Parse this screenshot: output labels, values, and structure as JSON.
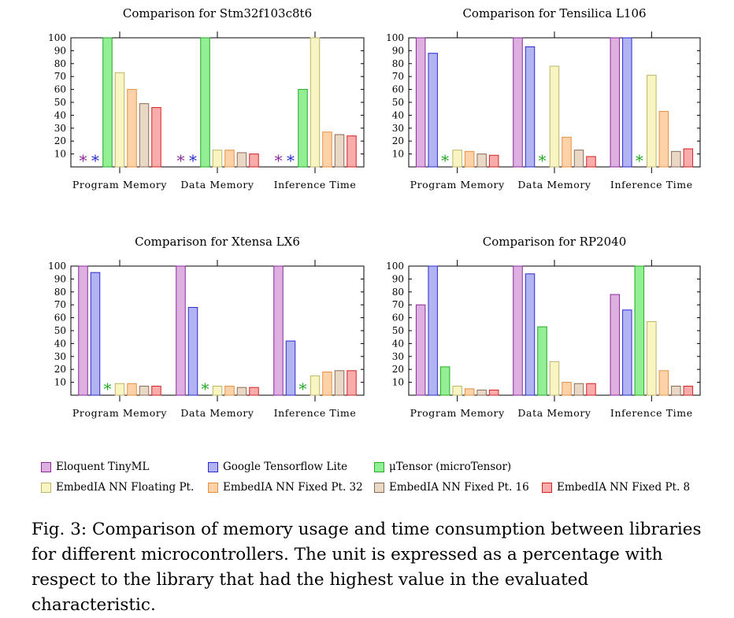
{
  "colors": {
    "Eloquent TinyML": {
      "fill": "#deb0e0",
      "stroke": "#8a2a9a"
    },
    "Google Tensorflow Lite": {
      "fill": "#b2b4f2",
      "stroke": "#2a2ad2"
    },
    "μTensor (microTensor)": {
      "fill": "#93ef93",
      "stroke": "#23a923"
    },
    "EmbedIA NN Floating Pt.": {
      "fill": "#f9f5c2",
      "stroke": "#bdb66a"
    },
    "EmbedIA NN Fixed Pt. 32": {
      "fill": "#fdd2a8",
      "stroke": "#e69040"
    },
    "EmbedIA NN Fixed Pt. 16": {
      "fill": "#ead8c7",
      "stroke": "#8d6a55"
    },
    "EmbedIA NN Fixed Pt. 8": {
      "fill": "#f8acab",
      "stroke": "#d62222"
    }
  },
  "legend": {
    "items": [
      "Eloquent TinyML",
      "Google Tensorflow Lite",
      "μTensor (microTensor)",
      "EmbedIA NN Floating Pt.",
      "EmbedIA NN Fixed Pt. 32",
      "EmbedIA NN Fixed Pt. 16",
      "EmbedIA NN Fixed Pt. 8"
    ]
  },
  "caption": {
    "prefix": "Fig. 3:",
    "text": "Comparison of memory usage and time consumption between libraries for different microcontrollers. The unit is expressed as a percentage with respect to the library that had the highest value in the evaluated characteristic."
  },
  "missing_marker": "*",
  "chart_data": [
    {
      "type": "bar",
      "title": "Comparison for Stm32f103c8t6",
      "categories": [
        "Program Memory",
        "Data Memory",
        "Inference Time"
      ],
      "ylim": [
        0,
        100
      ],
      "yticks": [
        10,
        20,
        30,
        40,
        50,
        60,
        70,
        80,
        90,
        100
      ],
      "series": [
        {
          "name": "Eloquent TinyML",
          "values": [
            null,
            null,
            null
          ]
        },
        {
          "name": "Google Tensorflow Lite",
          "values": [
            null,
            null,
            null
          ]
        },
        {
          "name": "μTensor (microTensor)",
          "values": [
            100,
            100,
            60
          ]
        },
        {
          "name": "EmbedIA NN Floating Pt.",
          "values": [
            73,
            13,
            100
          ]
        },
        {
          "name": "EmbedIA NN Fixed Pt. 32",
          "values": [
            60,
            13,
            27
          ]
        },
        {
          "name": "EmbedIA NN Fixed Pt. 16",
          "values": [
            49,
            11,
            25
          ]
        },
        {
          "name": "EmbedIA NN Fixed Pt. 8",
          "values": [
            46,
            10,
            24
          ]
        }
      ]
    },
    {
      "type": "bar",
      "title": "Comparison for Tensilica L106",
      "categories": [
        "Program Memory",
        "Data Memory",
        "Inference Time"
      ],
      "ylim": [
        0,
        100
      ],
      "yticks": [
        10,
        20,
        30,
        40,
        50,
        60,
        70,
        80,
        90,
        100
      ],
      "series": [
        {
          "name": "Eloquent TinyML",
          "values": [
            100,
            100,
            100
          ]
        },
        {
          "name": "Google Tensorflow Lite",
          "values": [
            88,
            93,
            100
          ]
        },
        {
          "name": "μTensor (microTensor)",
          "values": [
            null,
            null,
            null
          ]
        },
        {
          "name": "EmbedIA NN Floating Pt.",
          "values": [
            13,
            78,
            71
          ]
        },
        {
          "name": "EmbedIA NN Fixed Pt. 32",
          "values": [
            12,
            23,
            43
          ]
        },
        {
          "name": "EmbedIA NN Fixed Pt. 16",
          "values": [
            10,
            13,
            12
          ]
        },
        {
          "name": "EmbedIA NN Fixed Pt. 8",
          "values": [
            9,
            8,
            14
          ]
        }
      ]
    },
    {
      "type": "bar",
      "title": "Comparison for Xtensa LX6",
      "categories": [
        "Program Memory",
        "Data Memory",
        "Inference Time"
      ],
      "ylim": [
        0,
        100
      ],
      "yticks": [
        10,
        20,
        30,
        40,
        50,
        60,
        70,
        80,
        90,
        100
      ],
      "series": [
        {
          "name": "Eloquent TinyML",
          "values": [
            100,
            100,
            100
          ]
        },
        {
          "name": "Google Tensorflow Lite",
          "values": [
            95,
            68,
            42
          ]
        },
        {
          "name": "μTensor (microTensor)",
          "values": [
            null,
            null,
            null
          ]
        },
        {
          "name": "EmbedIA NN Floating Pt.",
          "values": [
            9,
            7,
            15
          ]
        },
        {
          "name": "EmbedIA NN Fixed Pt. 32",
          "values": [
            9,
            7,
            18
          ]
        },
        {
          "name": "EmbedIA NN Fixed Pt. 16",
          "values": [
            7,
            6,
            19
          ]
        },
        {
          "name": "EmbedIA NN Fixed Pt. 8",
          "values": [
            7,
            6,
            19
          ]
        }
      ]
    },
    {
      "type": "bar",
      "title": "Comparison for RP2040",
      "categories": [
        "Program Memory",
        "Data Memory",
        "Inference Time"
      ],
      "ylim": [
        0,
        100
      ],
      "yticks": [
        10,
        20,
        30,
        40,
        50,
        60,
        70,
        80,
        90,
        100
      ],
      "series": [
        {
          "name": "Eloquent TinyML",
          "values": [
            70,
            100,
            78
          ]
        },
        {
          "name": "Google Tensorflow Lite",
          "values": [
            100,
            94,
            66
          ]
        },
        {
          "name": "μTensor (microTensor)",
          "values": [
            22,
            53,
            100
          ]
        },
        {
          "name": "EmbedIA NN Floating Pt.",
          "values": [
            7,
            26,
            57
          ]
        },
        {
          "name": "EmbedIA NN Fixed Pt. 32",
          "values": [
            5,
            10,
            19
          ]
        },
        {
          "name": "EmbedIA NN Fixed Pt. 16",
          "values": [
            4,
            9,
            7
          ]
        },
        {
          "name": "EmbedIA NN Fixed Pt. 8",
          "values": [
            4,
            9,
            7
          ]
        }
      ]
    }
  ]
}
